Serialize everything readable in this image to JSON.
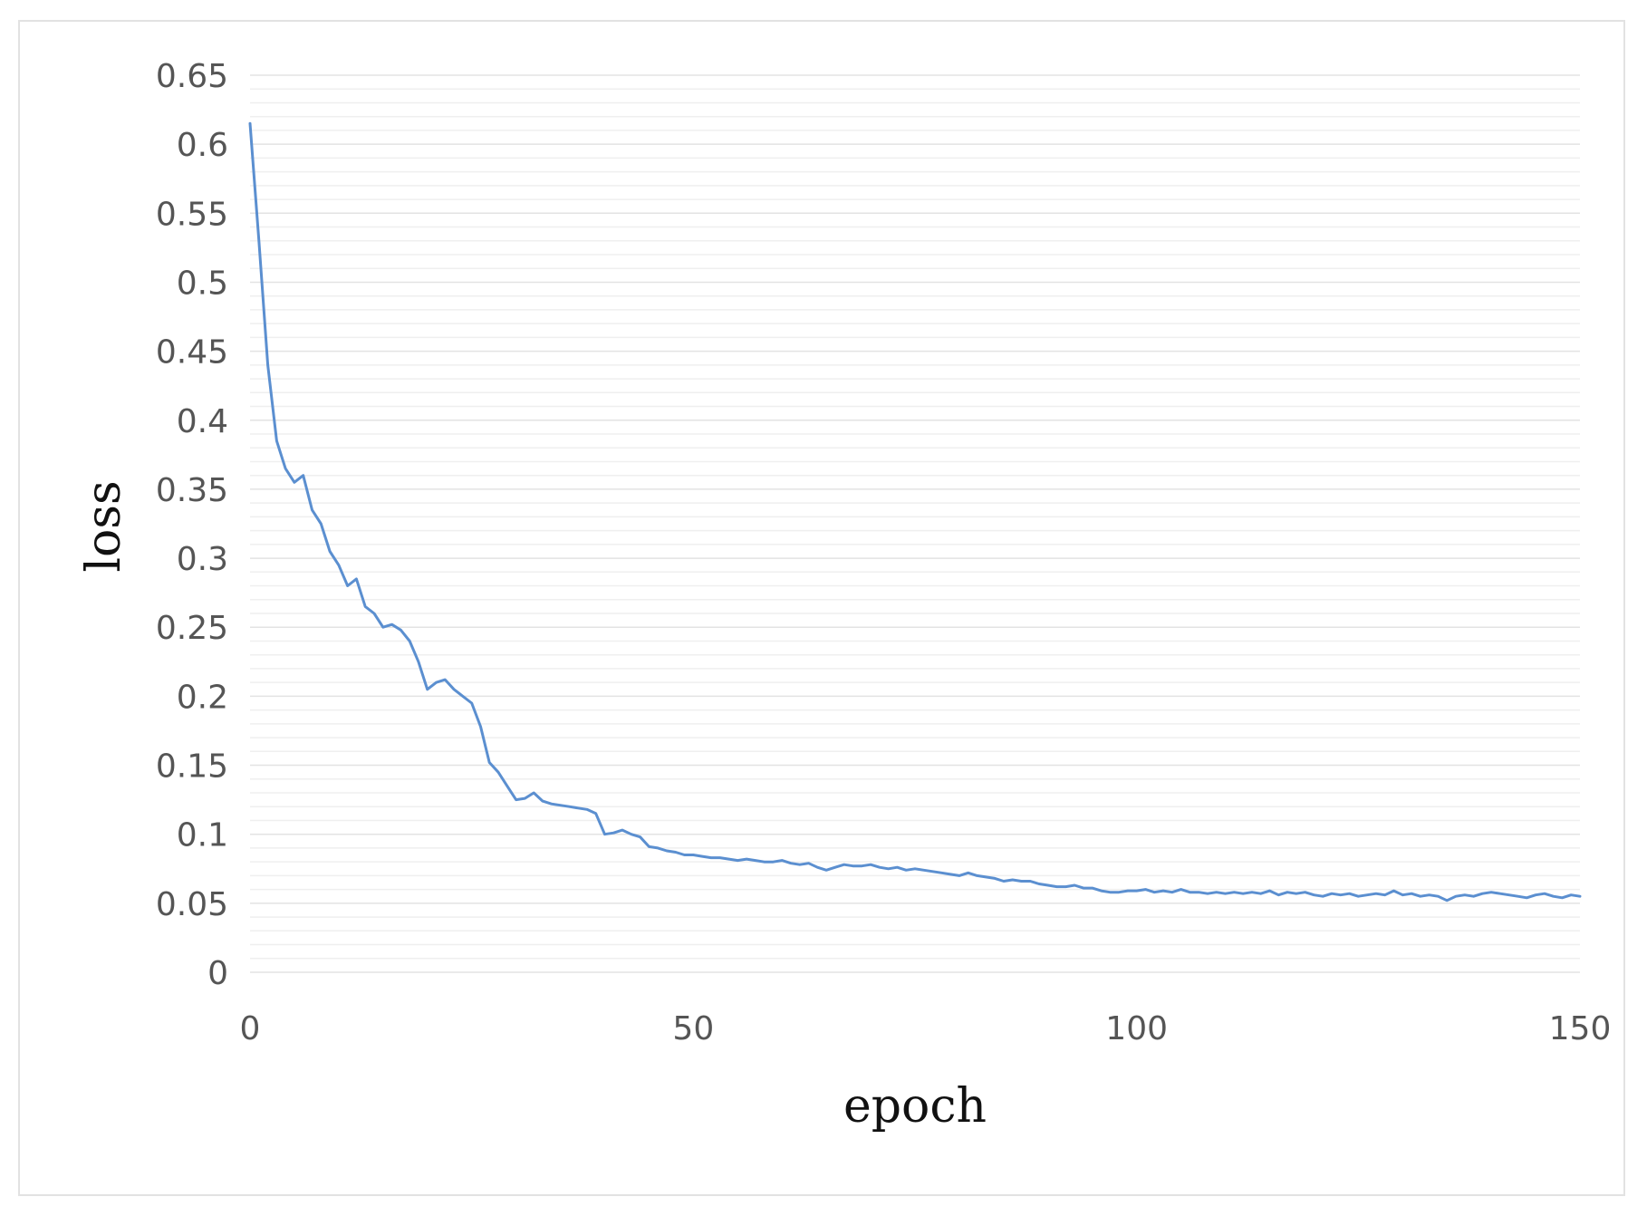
{
  "chart_data": {
    "type": "line",
    "xlabel": "epoch",
    "ylabel": "loss",
    "xlim": [
      0,
      150
    ],
    "ylim": [
      0,
      0.65
    ],
    "x_ticks": [
      "0",
      "50",
      "100",
      "150"
    ],
    "y_ticks": [
      "0",
      "0.05",
      "0.1",
      "0.15",
      "0.2",
      "0.25",
      "0.3",
      "0.35",
      "0.4",
      "0.45",
      "0.5",
      "0.55",
      "0.6",
      "0.65"
    ],
    "grid": true,
    "line_color": "#5b8fd0",
    "series": [
      {
        "x": [
          0,
          1,
          2,
          3,
          4,
          5,
          6,
          7,
          8,
          9,
          10,
          11,
          12,
          13,
          14,
          15,
          16,
          17,
          18,
          19,
          20,
          21,
          22,
          23,
          24,
          25,
          26,
          27,
          28,
          29,
          30,
          31,
          32,
          33,
          34,
          35,
          36,
          37,
          38,
          39,
          40,
          41,
          42,
          43,
          44,
          45,
          46,
          47,
          48,
          49,
          50,
          51,
          52,
          53,
          54,
          55,
          56,
          57,
          58,
          59,
          60,
          61,
          62,
          63,
          64,
          65,
          66,
          67,
          68,
          69,
          70,
          71,
          72,
          73,
          74,
          75,
          76,
          77,
          78,
          79,
          80,
          81,
          82,
          83,
          84,
          85,
          86,
          87,
          88,
          89,
          90,
          91,
          92,
          93,
          94,
          95,
          96,
          97,
          98,
          99,
          100,
          101,
          102,
          103,
          104,
          105,
          106,
          107,
          108,
          109,
          110,
          111,
          112,
          113,
          114,
          115,
          116,
          117,
          118,
          119,
          120,
          121,
          122,
          123,
          124,
          125,
          126,
          127,
          128,
          129,
          130,
          131,
          132,
          133,
          134,
          135,
          136,
          137,
          138,
          139,
          140,
          141,
          142,
          143,
          144,
          145,
          146,
          147,
          148,
          149,
          150
        ],
        "y": [
          0.615,
          0.53,
          0.44,
          0.385,
          0.365,
          0.355,
          0.36,
          0.335,
          0.325,
          0.305,
          0.295,
          0.28,
          0.285,
          0.265,
          0.26,
          0.25,
          0.252,
          0.248,
          0.24,
          0.225,
          0.205,
          0.21,
          0.212,
          0.205,
          0.2,
          0.195,
          0.178,
          0.152,
          0.145,
          0.135,
          0.125,
          0.126,
          0.13,
          0.124,
          0.122,
          0.121,
          0.12,
          0.119,
          0.118,
          0.115,
          0.1,
          0.101,
          0.103,
          0.1,
          0.098,
          0.091,
          0.09,
          0.088,
          0.087,
          0.085,
          0.085,
          0.084,
          0.083,
          0.083,
          0.082,
          0.081,
          0.082,
          0.081,
          0.08,
          0.08,
          0.081,
          0.079,
          0.078,
          0.079,
          0.076,
          0.074,
          0.076,
          0.078,
          0.077,
          0.077,
          0.078,
          0.076,
          0.075,
          0.076,
          0.074,
          0.075,
          0.074,
          0.073,
          0.072,
          0.071,
          0.07,
          0.072,
          0.07,
          0.069,
          0.068,
          0.066,
          0.067,
          0.066,
          0.066,
          0.064,
          0.063,
          0.062,
          0.062,
          0.063,
          0.061,
          0.061,
          0.059,
          0.058,
          0.058,
          0.059,
          0.059,
          0.06,
          0.058,
          0.059,
          0.058,
          0.06,
          0.058,
          0.058,
          0.057,
          0.058,
          0.057,
          0.058,
          0.057,
          0.058,
          0.057,
          0.059,
          0.056,
          0.058,
          0.057,
          0.058,
          0.056,
          0.055,
          0.057,
          0.056,
          0.057,
          0.055,
          0.056,
          0.057,
          0.056,
          0.059,
          0.056,
          0.057,
          0.055,
          0.056,
          0.055,
          0.052,
          0.055,
          0.056,
          0.055,
          0.057,
          0.058,
          0.057,
          0.056,
          0.055,
          0.054,
          0.056,
          0.057,
          0.055,
          0.054,
          0.056,
          0.055
        ]
      }
    ]
  }
}
